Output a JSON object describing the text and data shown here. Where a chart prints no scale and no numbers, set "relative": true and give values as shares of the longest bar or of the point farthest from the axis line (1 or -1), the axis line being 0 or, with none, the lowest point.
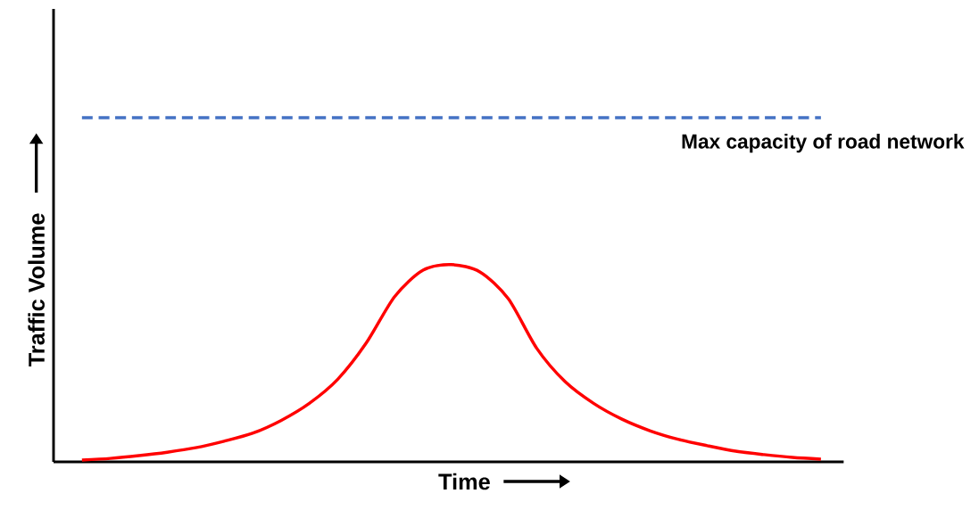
{
  "chart_data": {
    "type": "line",
    "relative": true,
    "xlabel": "Time",
    "ylabel": "Traffic Volume",
    "marker": "none",
    "categories": [
      null,
      null,
      null,
      null,
      null,
      null,
      null,
      null,
      null,
      null,
      null,
      null,
      null,
      null,
      null,
      null,
      null,
      null,
      null,
      null,
      null,
      null,
      null,
      null,
      null,
      null,
      null
    ],
    "series": [
      {
        "color": "#ff0000",
        "line_style": "solid",
        "values": [
          0.005,
          0.01,
          0.018,
          0.028,
          0.041,
          0.06,
          0.083,
          0.12,
          0.17,
          0.24,
          0.345,
          0.48,
          0.557,
          0.573,
          0.552,
          0.474,
          0.33,
          0.233,
          0.17,
          0.124,
          0.09,
          0.065,
          0.047,
          0.031,
          0.021,
          0.013,
          0.008
        ]
      },
      {
        "name": "Max capacity of road network",
        "color": "#4472c4",
        "line_style": "dashed",
        "values": [
          1,
          1,
          1,
          1,
          1,
          1,
          1,
          1,
          1,
          1,
          1,
          1,
          1,
          1,
          1,
          1,
          1,
          1,
          1,
          1,
          1,
          1,
          1,
          1,
          1,
          1,
          1
        ]
      }
    ]
  }
}
